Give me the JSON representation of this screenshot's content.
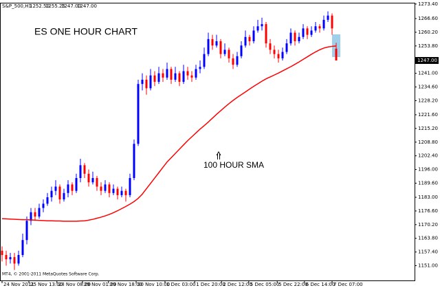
{
  "chart_data": {
    "type": "candlestick",
    "symbol": "S&P_500,H1",
    "header_values": [
      {
        "value": 1252.5,
        "label": "1252.50"
      },
      {
        "value": 1255.25,
        "label": "1255.25"
      },
      {
        "value": 1247,
        "label": "1247.00"
      },
      {
        "value": 1247,
        "label": "1247.00"
      }
    ],
    "title": "ES ONE HOUR CHART",
    "copyright": "MT4, © 2001-2011 MetaQuotes Software Corp.",
    "up_color": "#0000ff",
    "down_color": "#ff0000",
    "candles": {
      "open": [
        1158,
        1156,
        1154,
        1155,
        1152,
        1156,
        1163,
        1172,
        1176,
        1174,
        1178,
        1180,
        1183,
        1186,
        1188,
        1182,
        1185,
        1189,
        1186,
        1192,
        1198,
        1194,
        1190,
        1192,
        1188,
        1186,
        1189,
        1185,
        1187,
        1184,
        1186,
        1184,
        1192,
        1208,
        1236,
        1238,
        1234,
        1240,
        1237,
        1241,
        1239,
        1243,
        1238,
        1241,
        1237,
        1242,
        1240,
        1239,
        1243,
        1244,
        1250,
        1257,
        1254,
        1256,
        1250,
        1252,
        1248,
        1245,
        1249,
        1254,
        1258,
        1256,
        1261,
        1263,
        1264,
        1255,
        1252,
        1250,
        1248,
        1251,
        1255,
        1260,
        1256,
        1258,
        1262,
        1259,
        1261,
        1263,
        1262,
        1266,
        1268,
        1252.5
      ],
      "high": [
        1160,
        1158,
        1157,
        1157,
        1158,
        1166,
        1174,
        1178,
        1178,
        1180,
        1182,
        1185,
        1188,
        1191,
        1189,
        1187,
        1191,
        1190,
        1194,
        1201,
        1199,
        1196,
        1195,
        1193,
        1190,
        1191,
        1190,
        1189,
        1188,
        1188,
        1187,
        1194,
        1210,
        1238,
        1241,
        1240,
        1243,
        1242,
        1244,
        1243,
        1246,
        1244,
        1244,
        1242,
        1245,
        1244,
        1242,
        1245,
        1247,
        1253,
        1260,
        1259,
        1259,
        1257,
        1255,
        1253,
        1250,
        1251,
        1256,
        1261,
        1259,
        1263,
        1266,
        1267,
        1265,
        1257,
        1254,
        1252,
        1253,
        1257,
        1262,
        1261,
        1260,
        1264,
        1263,
        1263,
        1265,
        1264,
        1268,
        1270,
        1269,
        1255.25
      ],
      "low": [
        1153,
        1151,
        1152,
        1149,
        1151,
        1155,
        1161,
        1170,
        1172,
        1173,
        1176,
        1179,
        1181,
        1184,
        1180,
        1181,
        1183,
        1184,
        1185,
        1190,
        1192,
        1188,
        1189,
        1186,
        1184,
        1185,
        1183,
        1184,
        1182,
        1183,
        1181,
        1183,
        1191,
        1207,
        1233,
        1231,
        1233,
        1235,
        1236,
        1237,
        1238,
        1236,
        1237,
        1235,
        1236,
        1238,
        1237,
        1238,
        1241,
        1243,
        1249,
        1252,
        1253,
        1248,
        1249,
        1246,
        1243,
        1244,
        1248,
        1253,
        1254,
        1255,
        1260,
        1261,
        1253,
        1250,
        1248,
        1246,
        1247,
        1250,
        1254,
        1254,
        1255,
        1257,
        1257,
        1258,
        1260,
        1260,
        1261,
        1265,
        1259,
        1247
      ],
      "close": [
        1156,
        1154,
        1155,
        1152,
        1156,
        1163,
        1172,
        1176,
        1174,
        1178,
        1180,
        1183,
        1186,
        1188,
        1182,
        1185,
        1189,
        1186,
        1192,
        1198,
        1194,
        1190,
        1192,
        1188,
        1186,
        1189,
        1185,
        1187,
        1184,
        1186,
        1184,
        1192,
        1208,
        1236,
        1238,
        1234,
        1240,
        1237,
        1241,
        1239,
        1243,
        1238,
        1241,
        1237,
        1242,
        1240,
        1239,
        1243,
        1244,
        1250,
        1257,
        1254,
        1256,
        1250,
        1252,
        1248,
        1245,
        1249,
        1254,
        1258,
        1256,
        1261,
        1263,
        1264,
        1255,
        1252,
        1250,
        1248,
        1251,
        1255,
        1260,
        1256,
        1258,
        1262,
        1259,
        1261,
        1263,
        1262,
        1266,
        1268,
        1262,
        1247
      ]
    },
    "sma": {
      "name": "100 HOUR SMA",
      "color": "#ff0000",
      "values": [
        1173.0,
        1172.9,
        1172.8,
        1172.7,
        1172.6,
        1172.5,
        1172.5,
        1172.4,
        1172.3,
        1172.2,
        1172.1,
        1172.0,
        1172.0,
        1171.9,
        1171.9,
        1171.8,
        1171.8,
        1171.8,
        1171.8,
        1171.9,
        1172.0,
        1172.3,
        1172.7,
        1173.2,
        1173.7,
        1174.3,
        1175.0,
        1175.8,
        1176.7,
        1177.7,
        1178.7,
        1179.8,
        1181.0,
        1182.5,
        1184.5,
        1187,
        1189.5,
        1192,
        1194.5,
        1197,
        1199.5,
        1201.5,
        1203.5,
        1205.5,
        1207.5,
        1209.5,
        1211.3,
        1213.1,
        1214.9,
        1216.5,
        1218.2,
        1220,
        1221.8,
        1223.5,
        1225.2,
        1226.8,
        1228.3,
        1229.7,
        1231,
        1232.3,
        1233.6,
        1234.9,
        1236.1,
        1237.3,
        1238.4,
        1239.3,
        1240.2,
        1241.1,
        1242.1,
        1243.1,
        1244.1,
        1245.2,
        1246.3,
        1247.5,
        1248.7,
        1249.9,
        1251,
        1252,
        1252.8,
        1253.3,
        1253.6,
        1253.8
      ]
    },
    "last_price": {
      "value": 1247,
      "label": "1247.00"
    },
    "xlim": [
      -0.5,
      100
    ],
    "ylim": [
      1144.1,
      1274.0
    ],
    "xticks": [
      {
        "value": 0,
        "label": "24 Nov 2011"
      },
      {
        "value": 6.5,
        "label": "25 Nov 13:00"
      },
      {
        "value": 13.3,
        "label": "28 Nov 08:00"
      },
      {
        "value": 19.5,
        "label": "29 Nov 01:00"
      },
      {
        "value": 25.8,
        "label": "29 Nov 18:00"
      },
      {
        "value": 32.5,
        "label": "30 Nov 10:00"
      },
      {
        "value": 39.5,
        "label": "1 Dec 03:00"
      },
      {
        "value": 46.7,
        "label": "1 Dec 20:00"
      },
      {
        "value": 53.2,
        "label": "2 Dec 12:00"
      },
      {
        "value": 59.8,
        "label": "5 Dec 05:00"
      },
      {
        "value": 66.7,
        "label": "5 Dec 22:00"
      },
      {
        "value": 73.3,
        "label": "6 Dec 14:00"
      },
      {
        "value": 80,
        "label": "7 Dec 07:00"
      }
    ],
    "yticks": [
      {
        "value": 1273.4,
        "label": "1273.40"
      },
      {
        "value": 1266.6,
        "label": "1266.60"
      },
      {
        "value": 1260.2,
        "label": "1260.20"
      },
      {
        "value": 1253.8,
        "label": "1253.80"
      },
      {
        "value": 1241,
        "label": "1241.00"
      },
      {
        "value": 1234.6,
        "label": "1234.60"
      },
      {
        "value": 1228.2,
        "label": "1228.20"
      },
      {
        "value": 1221.6,
        "label": "1221.60"
      },
      {
        "value": 1215.2,
        "label": "1215.20"
      },
      {
        "value": 1208.8,
        "label": "1208.80"
      },
      {
        "value": 1202.4,
        "label": "1202.40"
      },
      {
        "value": 1196,
        "label": "1196.00"
      },
      {
        "value": 1189.6,
        "label": "1189.60"
      },
      {
        "value": 1183,
        "label": "1183.00"
      },
      {
        "value": 1176.6,
        "label": "1176.60"
      },
      {
        "value": 1170.2,
        "label": "1170.20"
      },
      {
        "value": 1163.8,
        "label": "1163.80"
      },
      {
        "value": 1157.4,
        "label": "1157.40"
      },
      {
        "value": 1151,
        "label": "1151.00"
      }
    ]
  }
}
